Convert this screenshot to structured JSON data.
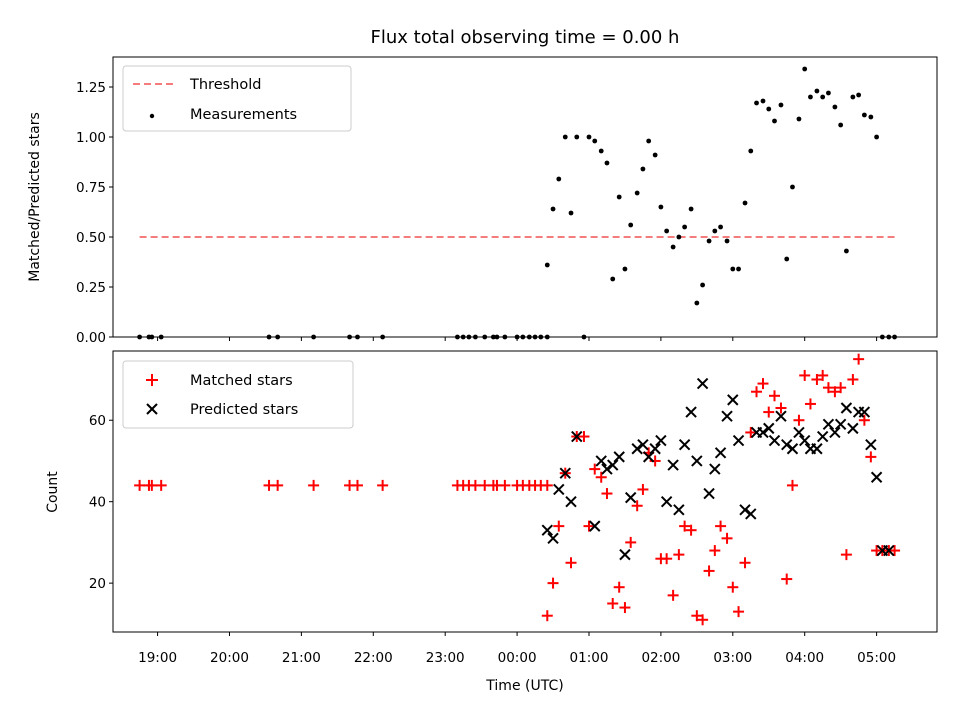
{
  "chart_data": [
    {
      "type": "scatter",
      "title": "Flux total observing time = 0.00 h",
      "xlabel": "",
      "ylabel": "Matched/Predicted stars",
      "xlim": [
        18.38,
        29.84
      ],
      "ylim": [
        0,
        1.4
      ],
      "yticks": [
        0.0,
        0.25,
        0.5,
        0.75,
        1.0,
        1.25
      ],
      "ytick_labels": [
        "0.00",
        "0.25",
        "0.50",
        "0.75",
        "1.00",
        "1.25"
      ],
      "legend": {
        "position": "top-left",
        "entries": [
          "Threshold",
          "Measurements"
        ]
      },
      "threshold": {
        "name": "Threshold",
        "value": 0.5,
        "x_start": 18.75,
        "x_end": 29.25,
        "color": "#f47c7c"
      },
      "measurements": {
        "name": "Measurements",
        "color": "#000000",
        "x": [
          18.75,
          18.88,
          18.92,
          19.05,
          20.55,
          20.67,
          21.17,
          21.67,
          21.78,
          22.13,
          23.17,
          23.25,
          23.33,
          23.42,
          23.55,
          23.67,
          23.72,
          23.83,
          24.0,
          24.08,
          24.17,
          24.25,
          24.33,
          24.42,
          24.42,
          24.5,
          24.58,
          24.67,
          24.75,
          24.83,
          24.93,
          25.0,
          25.08,
          25.17,
          25.25,
          25.33,
          25.42,
          25.5,
          25.58,
          25.67,
          25.75,
          25.83,
          25.92,
          26.0,
          26.08,
          26.17,
          26.25,
          26.33,
          26.42,
          26.5,
          26.58,
          26.67,
          26.75,
          26.83,
          26.92,
          27.0,
          27.08,
          27.17,
          27.25,
          27.33,
          27.42,
          27.5,
          27.58,
          27.67,
          27.75,
          27.83,
          27.92,
          28.0,
          28.08,
          28.17,
          28.25,
          28.33,
          28.42,
          28.5,
          28.58,
          28.67,
          28.75,
          28.83,
          28.92,
          29.0,
          29.08,
          29.17,
          29.25
        ],
        "y": [
          0,
          0,
          0,
          0,
          0,
          0,
          0,
          0,
          0,
          0,
          0,
          0,
          0,
          0,
          0,
          0,
          0,
          0,
          0,
          0,
          0,
          0,
          0,
          0,
          0.36,
          0.64,
          0.79,
          1.0,
          0.62,
          1.0,
          0,
          1.0,
          0.98,
          0.93,
          0.87,
          0.29,
          0.7,
          0.34,
          0.56,
          0.72,
          0.84,
          0.98,
          0.91,
          0.65,
          0.53,
          0.45,
          0.5,
          0.55,
          0.64,
          0.17,
          0.26,
          0.48,
          0.53,
          0.55,
          0.48,
          0.34,
          0.34,
          0.67,
          0.93,
          1.17,
          1.18,
          1.14,
          1.08,
          1.16,
          0.39,
          0.75,
          1.09,
          1.34,
          1.2,
          1.23,
          1.2,
          1.22,
          1.15,
          1.06,
          0.43,
          1.2,
          1.21,
          1.11,
          1.1,
          1.0,
          0,
          0,
          0
        ]
      }
    },
    {
      "type": "scatter",
      "title": "",
      "xlabel": "Time (UTC)",
      "ylabel": "Count",
      "xlim": [
        18.38,
        29.84
      ],
      "ylim": [
        8,
        77
      ],
      "yticks": [
        20,
        40,
        60
      ],
      "ytick_labels": [
        "20",
        "40",
        "60"
      ],
      "xticks": [
        19,
        20,
        21,
        22,
        23,
        24,
        25,
        26,
        27,
        28,
        29
      ],
      "xtick_labels": [
        "19:00",
        "20:00",
        "21:00",
        "22:00",
        "23:00",
        "00:00",
        "01:00",
        "02:00",
        "03:00",
        "04:00",
        "05:00"
      ],
      "legend": {
        "position": "top-left",
        "entries": [
          "Matched stars",
          "Predicted stars"
        ]
      },
      "series": [
        {
          "name": "Matched stars",
          "marker": "plus",
          "color": "#ff0000",
          "x": [
            18.75,
            18.88,
            18.92,
            19.05,
            20.55,
            20.67,
            21.17,
            21.67,
            21.78,
            22.13,
            23.17,
            23.25,
            23.33,
            23.42,
            23.55,
            23.67,
            23.72,
            23.83,
            24.0,
            24.08,
            24.17,
            24.25,
            24.33,
            24.42,
            24.42,
            24.5,
            24.58,
            24.67,
            24.75,
            24.83,
            24.93,
            25.0,
            25.08,
            25.17,
            25.25,
            25.33,
            25.42,
            25.5,
            25.58,
            25.67,
            25.75,
            25.83,
            25.92,
            26.0,
            26.08,
            26.17,
            26.25,
            26.33,
            26.42,
            26.5,
            26.58,
            26.67,
            26.75,
            26.83,
            26.92,
            27.0,
            27.08,
            27.17,
            27.25,
            27.33,
            27.42,
            27.5,
            27.58,
            27.67,
            27.75,
            27.83,
            27.92,
            28.0,
            28.08,
            28.17,
            28.25,
            28.33,
            28.42,
            28.5,
            28.58,
            28.67,
            28.75,
            28.83,
            28.92,
            29.0,
            29.08,
            29.17,
            29.25
          ],
          "y": [
            44,
            44,
            44,
            44,
            44,
            44,
            44,
            44,
            44,
            44,
            44,
            44,
            44,
            44,
            44,
            44,
            44,
            44,
            44,
            44,
            44,
            44,
            44,
            44,
            12,
            20,
            34,
            47,
            25,
            56,
            56,
            34,
            48,
            46,
            42,
            15,
            19,
            14,
            30,
            39,
            43,
            52,
            50,
            26,
            26,
            17,
            27,
            34,
            33,
            12,
            11,
            23,
            28,
            34,
            31,
            19,
            13,
            25,
            57,
            67,
            69,
            62,
            66,
            63,
            21,
            44,
            60,
            71,
            64,
            70,
            71,
            68,
            67,
            68,
            27,
            70,
            75,
            60,
            51,
            28,
            28,
            28,
            28
          ]
        },
        {
          "name": "Predicted stars",
          "marker": "x",
          "color": "#000000",
          "x": [
            24.42,
            24.5,
            24.58,
            24.67,
            24.75,
            24.83,
            25.08,
            25.17,
            25.25,
            25.33,
            25.42,
            25.5,
            25.58,
            25.67,
            25.75,
            25.83,
            25.92,
            26.0,
            26.08,
            26.17,
            26.25,
            26.33,
            26.42,
            26.5,
            26.58,
            26.67,
            26.75,
            26.83,
            26.92,
            27.0,
            27.08,
            27.17,
            27.25,
            27.33,
            27.42,
            27.5,
            27.58,
            27.67,
            27.75,
            27.83,
            27.92,
            28.0,
            28.08,
            28.17,
            28.25,
            28.33,
            28.42,
            28.5,
            28.58,
            28.67,
            28.75,
            28.83,
            28.92,
            29.0,
            29.08,
            29.17
          ],
          "y": [
            33,
            31,
            43,
            47,
            40,
            56,
            34,
            50,
            48,
            49,
            51,
            27,
            41,
            53,
            54,
            51,
            53,
            55,
            40,
            49,
            38,
            54,
            62,
            50,
            69,
            42,
            48,
            52,
            61,
            65,
            55,
            38,
            37,
            57,
            57,
            58,
            55,
            61,
            54,
            53,
            57,
            55,
            53,
            53,
            56,
            59,
            57,
            59,
            63,
            58,
            62,
            62,
            54,
            46,
            28,
            28
          ]
        }
      ]
    }
  ]
}
